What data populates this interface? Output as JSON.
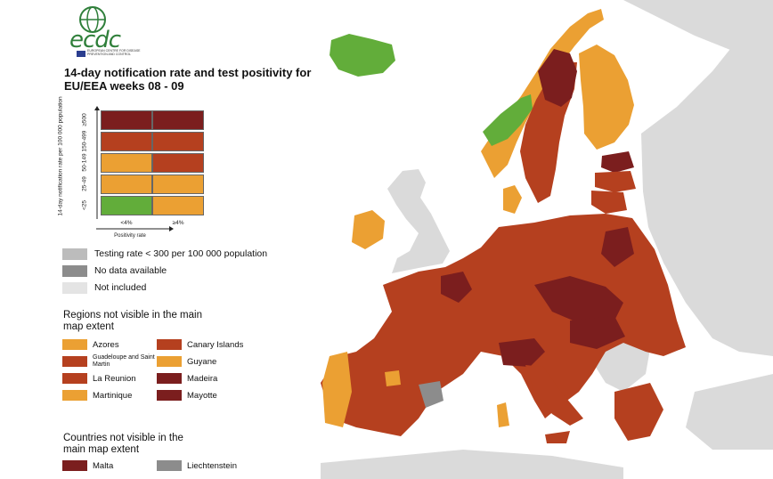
{
  "colors": {
    "sea": "#ffffff",
    "non_eu": "#dadada",
    "dark_red": "#7b1e1e",
    "red": "#b5401f",
    "orange": "#eba033",
    "green": "#62ad3a",
    "grey": "#8c8c8c",
    "light_grey": "#bcbcbc",
    "not_included": "#e4e4e4"
  },
  "logo": {
    "text": "ecdc",
    "subtitle": "EUROPEAN CENTRE FOR DISEASE PREVENTION AND CONTROL"
  },
  "title": "14-day notification rate and test positivity for EU/EEA weeks 08 - 09",
  "matrix": {
    "ylabel": "14-day notification rate per 100 000 population",
    "xlabel": "Positivity rate",
    "row_labels": [
      "≥500",
      "150-499",
      "50-149",
      "25-49",
      "<25"
    ],
    "col_labels": [
      "<4%",
      "≥4%"
    ],
    "cells": [
      [
        "dark_red",
        "dark_red"
      ],
      [
        "red",
        "red"
      ],
      [
        "orange",
        "red"
      ],
      [
        "orange",
        "orange"
      ],
      [
        "green",
        "orange"
      ]
    ]
  },
  "legend": [
    {
      "label": "Testing rate < 300 per 100 000 population",
      "color": "light_grey"
    },
    {
      "label": "No data available",
      "color": "grey"
    },
    {
      "label": "Not included",
      "color": "not_included"
    }
  ],
  "regions_title": "Regions not visible in the main map extent",
  "regions": [
    {
      "label": "Azores",
      "color": "orange"
    },
    {
      "label": "Canary Islands",
      "color": "red"
    },
    {
      "label": "Guadeloupe and Saint Martin",
      "color": "red"
    },
    {
      "label": "Guyane",
      "color": "orange"
    },
    {
      "label": "La Reunion",
      "color": "red"
    },
    {
      "label": "Madeira",
      "color": "dark_red"
    },
    {
      "label": "Martinique",
      "color": "orange"
    },
    {
      "label": "Mayotte",
      "color": "dark_red"
    }
  ],
  "countries_title": "Countries not visible in the main map extent",
  "countries": [
    {
      "label": "Malta",
      "color": "dark_red"
    },
    {
      "label": "Liechtenstein",
      "color": "grey"
    }
  ]
}
